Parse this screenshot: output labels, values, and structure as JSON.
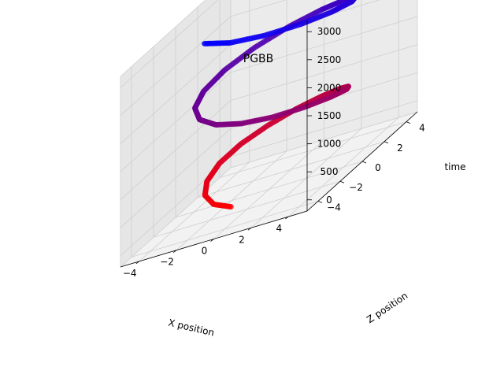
{
  "chart_data": {
    "type": "scatter",
    "projection": "3d",
    "title": "PGBB",
    "xlabel": "X position",
    "ylabel": "Z position",
    "zlabel": "time",
    "xlim": [
      -5,
      5
    ],
    "ylim": [
      -5,
      5
    ],
    "zlim": [
      -200,
      3200
    ],
    "x_ticks": [
      "−4",
      "−2",
      "0",
      "2",
      "4"
    ],
    "y_ticks": [
      "−4",
      "−2",
      "0",
      "2",
      "4"
    ],
    "z_ticks": [
      "0",
      "500",
      "1000",
      "1500",
      "2000",
      "2500",
      "3000"
    ],
    "grid": true,
    "color_map": {
      "low": "#ff0000",
      "high": "#0000ff",
      "by": "time"
    },
    "series": [
      {
        "points": [
          [
            -0.5,
            -2.6,
            0
          ],
          [
            -1.6,
            -2.3,
            100
          ],
          [
            -2.6,
            -1.4,
            200
          ],
          [
            -3.2,
            -0.2,
            300
          ],
          [
            -3.3,
            1.1,
            400
          ],
          [
            -2.8,
            2.2,
            500
          ],
          [
            -1.8,
            2.9,
            600
          ],
          [
            -0.5,
            3.3,
            700
          ],
          [
            0.9,
            3.2,
            800
          ],
          [
            2.2,
            2.7,
            900
          ],
          [
            3.2,
            1.8,
            1000
          ],
          [
            3.8,
            0.6,
            1100
          ],
          [
            3.7,
            -0.7,
            1200
          ],
          [
            3.0,
            -1.9,
            1300
          ],
          [
            1.8,
            -2.8,
            1400
          ],
          [
            0.4,
            -3.2,
            1500
          ],
          [
            -1.0,
            -3.1,
            1600
          ],
          [
            -2.3,
            -2.4,
            1700
          ],
          [
            -3.2,
            -1.3,
            1800
          ],
          [
            -3.5,
            0.0,
            1900
          ],
          [
            -3.2,
            1.4,
            2000
          ],
          [
            -2.3,
            2.6,
            2100
          ],
          [
            -0.9,
            3.4,
            2200
          ],
          [
            0.7,
            3.6,
            2300
          ],
          [
            2.2,
            3.2,
            2400
          ],
          [
            3.3,
            2.2,
            2500
          ],
          [
            3.9,
            0.9,
            2600
          ],
          [
            3.7,
            -0.6,
            2700
          ],
          [
            2.8,
            -1.9,
            2800
          ],
          [
            1.4,
            -2.8,
            2900
          ],
          [
            -0.2,
            -3.2,
            3000
          ],
          [
            -1.7,
            -3.0,
            3100
          ]
        ]
      }
    ]
  }
}
